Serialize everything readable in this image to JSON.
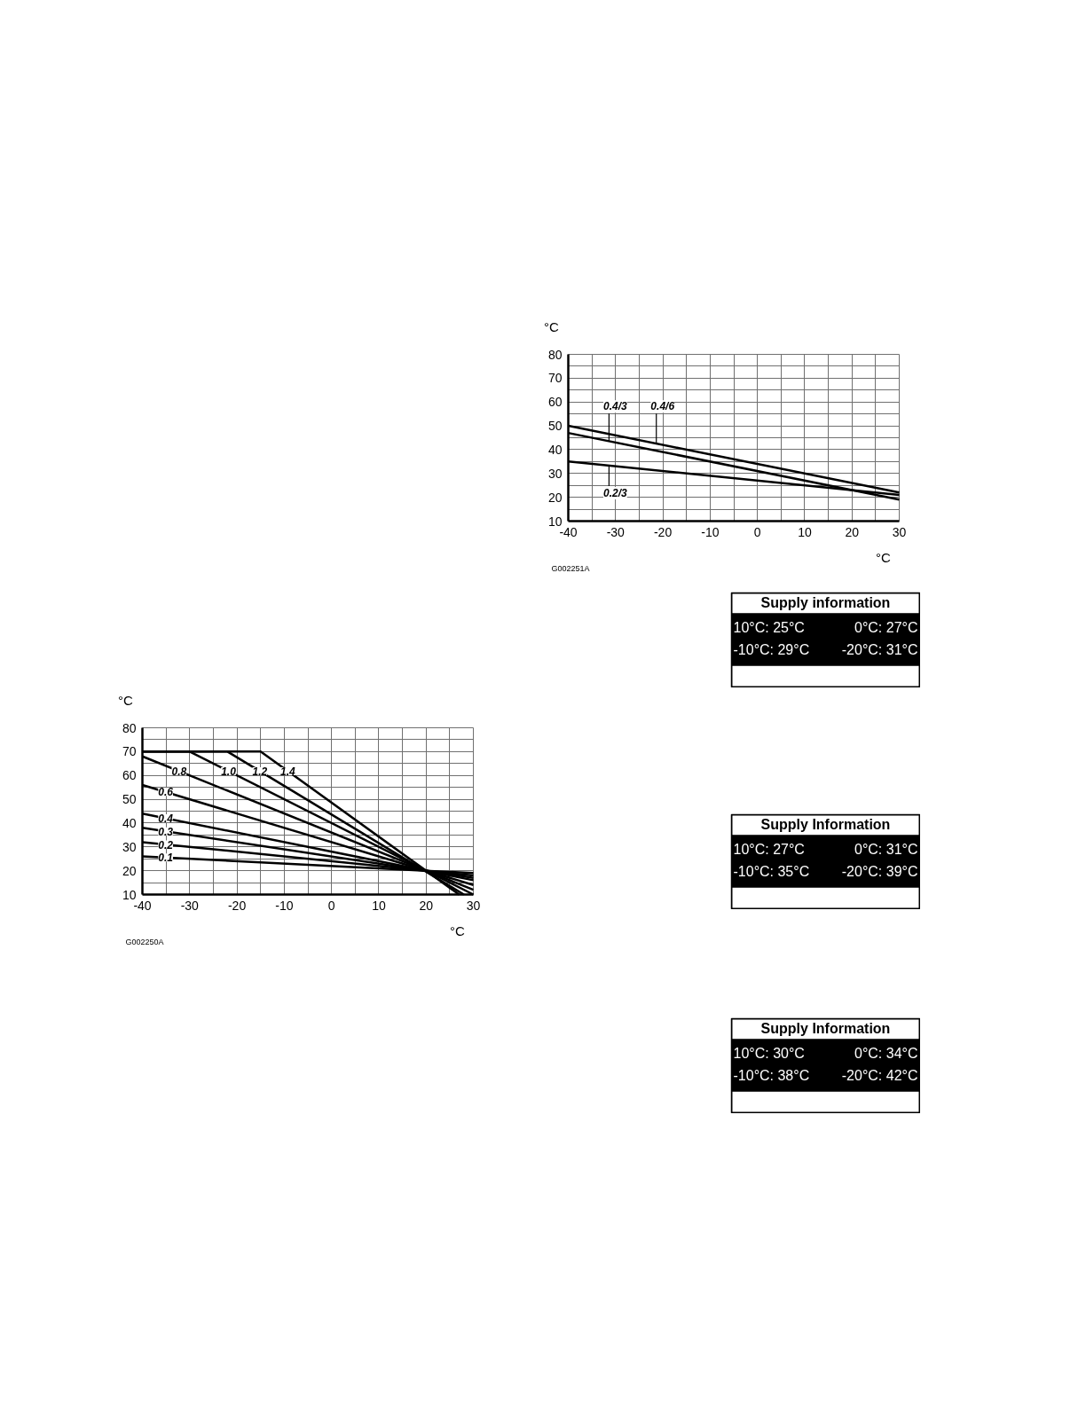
{
  "chart_data": [
    {
      "type": "line",
      "xlabel": "°C",
      "ylabel": "°C",
      "xlim": [
        -40,
        30
      ],
      "ylim": [
        10,
        80
      ],
      "xticks": [
        -40,
        {
          "value": -35,
          "label": null
        },
        -30,
        {
          "value": -25,
          "label": null
        },
        -20,
        {
          "value": -15,
          "label": null
        },
        -10,
        {
          "value": -5,
          "label": null
        },
        0,
        {
          "value": 5,
          "label": null
        },
        10,
        {
          "value": 15,
          "label": null
        },
        20,
        {
          "value": 25,
          "label": null
        },
        30
      ],
      "yticks": [
        10,
        {
          "value": 15,
          "label": null
        },
        20,
        {
          "value": 25,
          "label": null
        },
        30,
        {
          "value": 35,
          "label": null
        },
        40,
        {
          "value": 45,
          "label": null
        },
        50,
        {
          "value": 55,
          "label": null
        },
        60,
        {
          "value": 65,
          "label": null
        },
        70,
        {
          "value": 75,
          "label": null
        },
        80
      ],
      "grid": true,
      "series": [
        {
          "name": "0.1",
          "color": "#000000",
          "x": [
            -40,
            30
          ],
          "values": [
            26,
            19
          ]
        },
        {
          "name": "0.2",
          "color": "#000000",
          "x": [
            -40,
            30
          ],
          "values": [
            32,
            18
          ]
        },
        {
          "name": "0.3",
          "color": "#000000",
          "x": [
            -40,
            30
          ],
          "values": [
            38,
            17
          ]
        },
        {
          "name": "0.4",
          "color": "#000000",
          "x": [
            -40,
            30
          ],
          "values": [
            44,
            16
          ]
        },
        {
          "name": "0.6",
          "color": "#000000",
          "x": [
            -40,
            30
          ],
          "values": [
            56,
            14
          ]
        },
        {
          "name": "0.8",
          "color": "#000000",
          "x": [
            -40,
            30
          ],
          "values": [
            68,
            12
          ]
        },
        {
          "name": "1.0",
          "color": "#000000",
          "x": [
            -40,
            -30,
            30
          ],
          "values": [
            70,
            70,
            10
          ]
        },
        {
          "name": "1.2",
          "color": "#000000",
          "x": [
            -40,
            -22,
            28
          ],
          "values": [
            70,
            70,
            10
          ]
        },
        {
          "name": "1.4",
          "color": "#000000",
          "x": [
            -40,
            -15,
            27
          ],
          "values": [
            70,
            70,
            10
          ]
        }
      ],
      "annotations": [
        "G002250A"
      ]
    },
    {
      "type": "line",
      "xlabel": "°C",
      "ylabel": "°C",
      "xlim": [
        -40,
        30
      ],
      "ylim": [
        10,
        80
      ],
      "xticks": [
        -40,
        {
          "value": -35,
          "label": null
        },
        -30,
        {
          "value": -25,
          "label": null
        },
        -20,
        {
          "value": -15,
          "label": null
        },
        -10,
        {
          "value": -5,
          "label": null
        },
        0,
        {
          "value": 5,
          "label": null
        },
        10,
        {
          "value": 15,
          "label": null
        },
        20,
        {
          "value": 25,
          "label": null
        },
        30
      ],
      "yticks": [
        10,
        {
          "value": 15,
          "label": null
        },
        20,
        {
          "value": 25,
          "label": null
        },
        30,
        {
          "value": 35,
          "label": null
        },
        40,
        {
          "value": 45,
          "label": null
        },
        50,
        {
          "value": 55,
          "label": null
        },
        60,
        {
          "value": 65,
          "label": null
        },
        70,
        {
          "value": 75,
          "label": null
        },
        80
      ],
      "grid": true,
      "series": [
        {
          "name": "0.4/3",
          "color": "#000000",
          "x": [
            -40,
            30
          ],
          "values": [
            47,
            19
          ]
        },
        {
          "name": "0.4/6",
          "color": "#000000",
          "x": [
            -40,
            30
          ],
          "values": [
            50,
            22
          ]
        },
        {
          "name": "0.2/3",
          "color": "#000000",
          "x": [
            -40,
            30
          ],
          "values": [
            35,
            21
          ]
        }
      ],
      "annotations": [
        "G002251A"
      ]
    },
    {
      "type": "other",
      "title": "Supply information",
      "annotations": [
        "10°C: 25°C",
        "0°C: 27°C",
        "-10°C: 29°C",
        "-20°C: 31°C"
      ]
    },
    {
      "type": "other",
      "title": "Supply Information",
      "annotations": [
        "10°C: 27°C",
        "0°C: 31°C",
        "-10°C: 35°C",
        "-20°C: 39°C"
      ]
    },
    {
      "type": "other",
      "title": "Supply Information",
      "annotations": [
        "10°C: 30°C",
        "0°C: 34°C",
        "-10°C: 38°C",
        "-20°C: 42°C"
      ]
    }
  ]
}
